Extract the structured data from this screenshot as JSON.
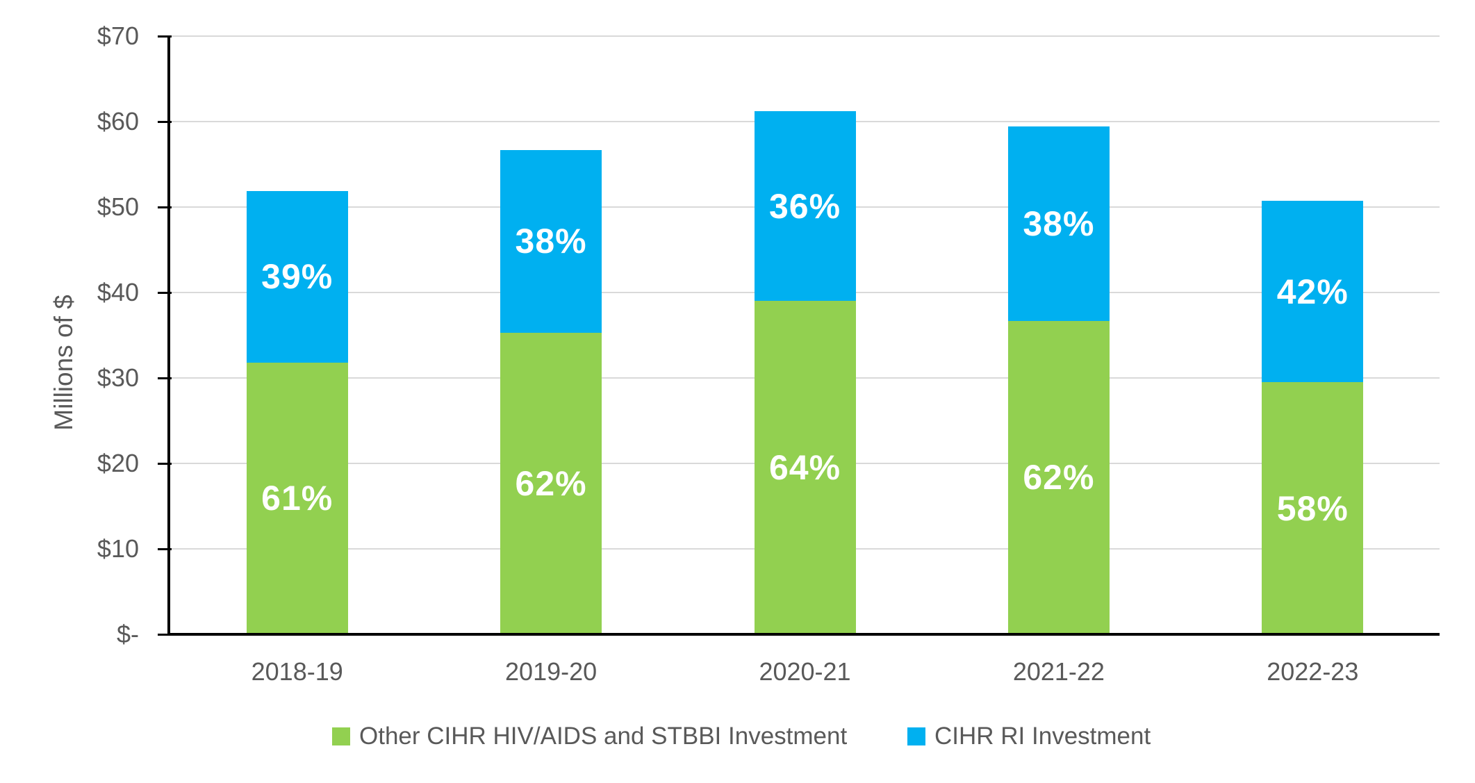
{
  "chart_data": {
    "type": "bar",
    "stacked": true,
    "categories": [
      "2018-19",
      "2019-20",
      "2020-21",
      "2021-22",
      "2022-23"
    ],
    "series": [
      {
        "name": "Other CIHR HIV/AIDS and STBBI Investment",
        "color": "#92D050",
        "values": [
          31.8,
          35.3,
          39.0,
          36.7,
          29.5
        ],
        "percent_labels": [
          "61%",
          "62%",
          "64%",
          "62%",
          "58%"
        ]
      },
      {
        "name": "CIHR RI Investment",
        "color": "#00B0F0",
        "values": [
          20.1,
          21.4,
          22.2,
          22.7,
          21.2
        ],
        "percent_labels": [
          "39%",
          "38%",
          "36%",
          "38%",
          "42%"
        ]
      }
    ],
    "ylabel": "Millions of $",
    "xlabel": "",
    "ylim": [
      0,
      70
    ],
    "y_tick_labels": [
      "$-",
      "$10",
      "$20",
      "$30",
      "$40",
      "$50",
      "$60",
      "$70"
    ],
    "grid": true,
    "legend_position": "bottom",
    "colors": {
      "axis": "#000000",
      "gridline": "#D9D9D9",
      "tick_text": "#595959",
      "segment_label_text": "#FFFFFF"
    }
  }
}
